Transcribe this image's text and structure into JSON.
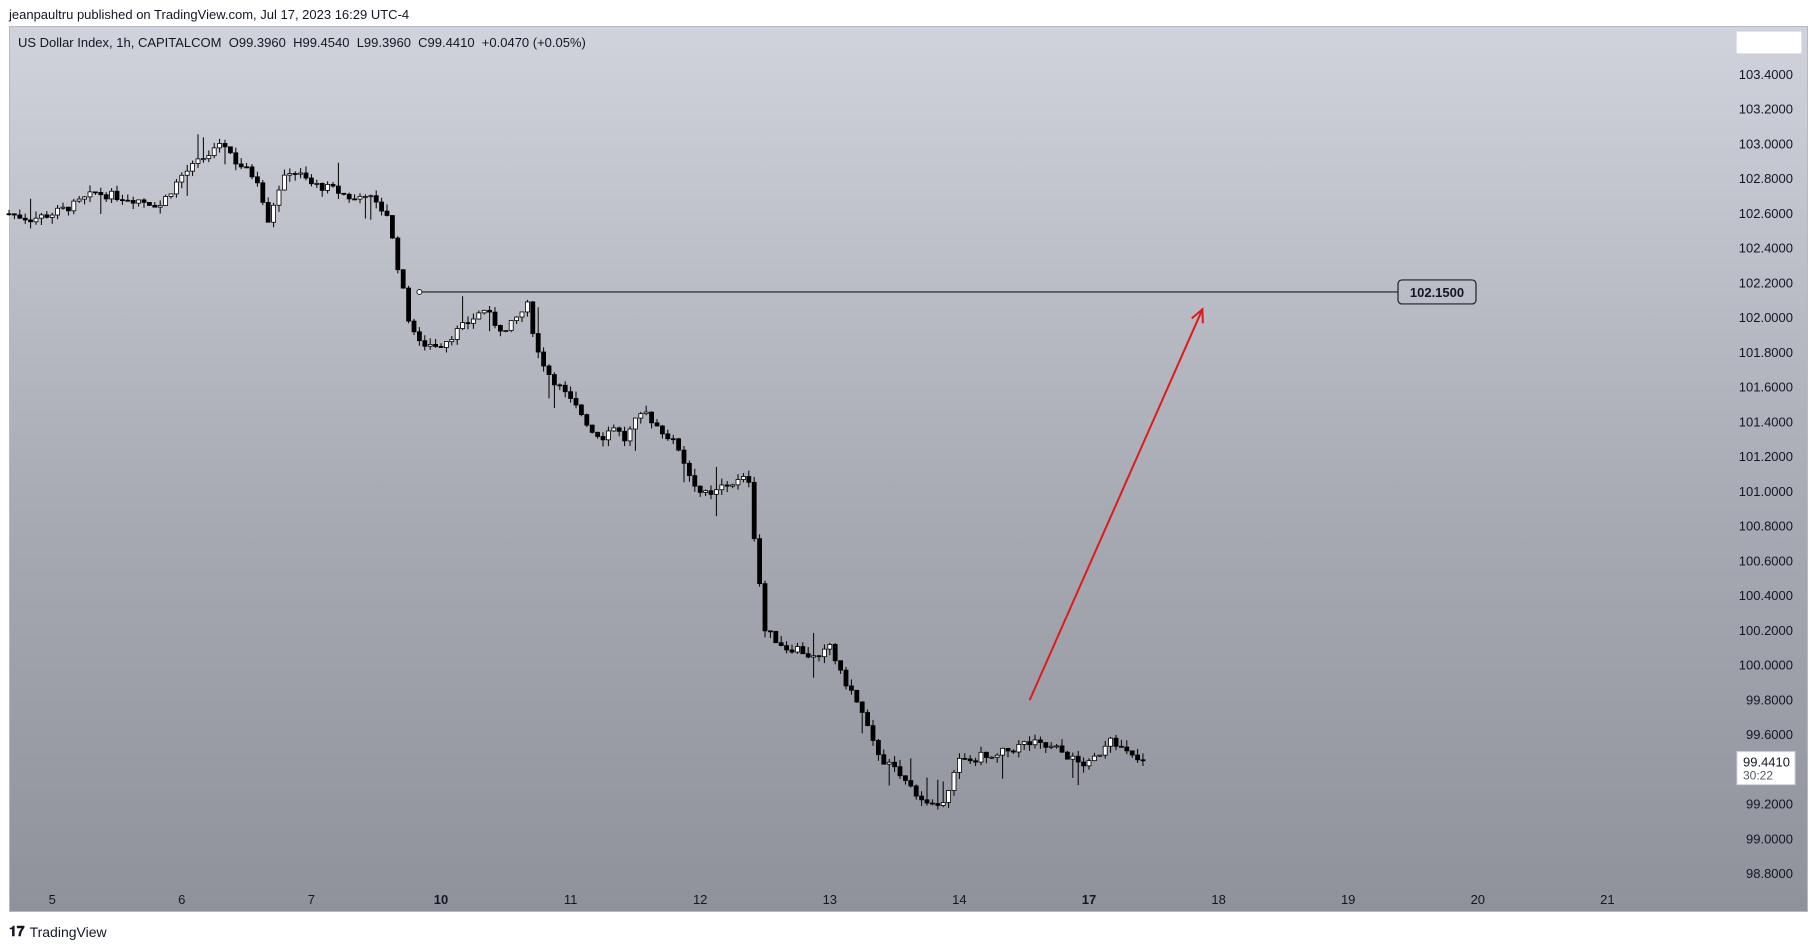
{
  "header": {
    "published_by": "jeanpaultru published on TradingView.com, Jul 17, 2023 16:29 UTC-4"
  },
  "legend": {
    "symbol": "US Dollar Index, 1h, CAPITALCOM",
    "open": "O99.3960",
    "high": "H99.4540",
    "low": "L99.3960",
    "close": "C99.4410",
    "change": "+0.0470 (+0.05%)"
  },
  "footer": {
    "brand": "TradingView",
    "logo_icon": "tradingview-logo-icon"
  },
  "colors": {
    "up": "#ffffff",
    "down": "#000000",
    "wick": "#000000",
    "arrow": "#e01a1a",
    "line": "#1f1f1f"
  },
  "chart_data": {
    "type": "candlestick",
    "title": "US Dollar Index, 1h, CAPITALCOM",
    "ylim": [
      98.7,
      103.55
    ],
    "y_ticks": [
      "103.4000",
      "103.2000",
      "103.0000",
      "102.8000",
      "102.6000",
      "102.4000",
      "102.2000",
      "102.0000",
      "101.8000",
      "101.6000",
      "101.4000",
      "101.2000",
      "101.0000",
      "100.8000",
      "100.6000",
      "100.4000",
      "100.2000",
      "100.0000",
      "99.8000",
      "99.6000",
      "99.4000",
      "99.2000",
      "99.0000",
      "98.8000"
    ],
    "x_ticks": [
      {
        "label": "5",
        "bold": false,
        "idx": 8
      },
      {
        "label": "6",
        "bold": false,
        "idx": 32
      },
      {
        "label": "7",
        "bold": false,
        "idx": 56
      },
      {
        "label": "10",
        "bold": true,
        "idx": 80
      },
      {
        "label": "11",
        "bold": false,
        "idx": 104
      },
      {
        "label": "12",
        "bold": false,
        "idx": 128
      },
      {
        "label": "13",
        "bold": false,
        "idx": 152
      },
      {
        "label": "14",
        "bold": false,
        "idx": 176
      },
      {
        "label": "17",
        "bold": true,
        "idx": 200
      },
      {
        "label": "18",
        "bold": false,
        "idx": 224
      },
      {
        "label": "19",
        "bold": false,
        "idx": 248
      },
      {
        "label": "20",
        "bold": false,
        "idx": 272
      },
      {
        "label": "21",
        "bold": false,
        "idx": 296
      }
    ],
    "close_path": [
      [
        0,
        102.6
      ],
      [
        4,
        102.57
      ],
      [
        8,
        102.6
      ],
      [
        12,
        102.65
      ],
      [
        16,
        102.72
      ],
      [
        20,
        102.7
      ],
      [
        24,
        102.68
      ],
      [
        28,
        102.65
      ],
      [
        32,
        102.82
      ],
      [
        36,
        102.92
      ],
      [
        40,
        103.0
      ],
      [
        42,
        102.9
      ],
      [
        44,
        102.85
      ],
      [
        46,
        102.8
      ],
      [
        48,
        102.57
      ],
      [
        50,
        102.75
      ],
      [
        52,
        102.85
      ],
      [
        54,
        102.82
      ],
      [
        56,
        102.77
      ],
      [
        60,
        102.74
      ],
      [
        64,
        102.68
      ],
      [
        66,
        102.72
      ],
      [
        68,
        102.65
      ],
      [
        70,
        102.6
      ],
      [
        72,
        102.3
      ],
      [
        74,
        102.0
      ],
      [
        76,
        101.85
      ],
      [
        80,
        101.85
      ],
      [
        84,
        101.95
      ],
      [
        88,
        102.05
      ],
      [
        90,
        101.97
      ],
      [
        92,
        101.92
      ],
      [
        94,
        102.0
      ],
      [
        96,
        102.07
      ],
      [
        98,
        101.8
      ],
      [
        100,
        101.68
      ],
      [
        102,
        101.6
      ],
      [
        104,
        101.52
      ],
      [
        106,
        101.45
      ],
      [
        108,
        101.35
      ],
      [
        110,
        101.32
      ],
      [
        112,
        101.38
      ],
      [
        114,
        101.3
      ],
      [
        116,
        101.4
      ],
      [
        118,
        101.45
      ],
      [
        120,
        101.38
      ],
      [
        122,
        101.32
      ],
      [
        124,
        101.25
      ],
      [
        126,
        101.1
      ],
      [
        128,
        101.0
      ],
      [
        130,
        100.97
      ],
      [
        132,
        101.03
      ],
      [
        134,
        101.05
      ],
      [
        136,
        101.07
      ],
      [
        137,
        101.07
      ],
      [
        138,
        100.75
      ],
      [
        140,
        100.2
      ],
      [
        142,
        100.15
      ],
      [
        144,
        100.1
      ],
      [
        146,
        100.1
      ],
      [
        148,
        100.06
      ],
      [
        150,
        100.03
      ],
      [
        152,
        100.12
      ],
      [
        154,
        99.95
      ],
      [
        156,
        99.85
      ],
      [
        158,
        99.72
      ],
      [
        160,
        99.55
      ],
      [
        162,
        99.45
      ],
      [
        164,
        99.4
      ],
      [
        166,
        99.33
      ],
      [
        168,
        99.27
      ],
      [
        170,
        99.2
      ],
      [
        172,
        99.17
      ],
      [
        174,
        99.3
      ],
      [
        176,
        99.45
      ],
      [
        178,
        99.45
      ],
      [
        180,
        99.48
      ],
      [
        182,
        99.45
      ],
      [
        184,
        99.5
      ],
      [
        186,
        99.52
      ],
      [
        188,
        99.55
      ],
      [
        190,
        99.55
      ],
      [
        192,
        99.53
      ],
      [
        194,
        99.52
      ],
      [
        196,
        99.48
      ],
      [
        198,
        99.44
      ],
      [
        200,
        99.43
      ],
      [
        202,
        99.5
      ],
      [
        204,
        99.6
      ],
      [
        206,
        99.52
      ],
      [
        208,
        99.47
      ],
      [
        210,
        99.44
      ]
    ],
    "current_price": "99.4410",
    "countdown": "30:22",
    "horizontal_line": {
      "label": "102.1500",
      "value": 102.15,
      "start_idx": 76
    },
    "arrow": {
      "from": [
        189,
        99.8
      ],
      "to": [
        221,
        102.05
      ]
    },
    "candle_count": 211
  }
}
